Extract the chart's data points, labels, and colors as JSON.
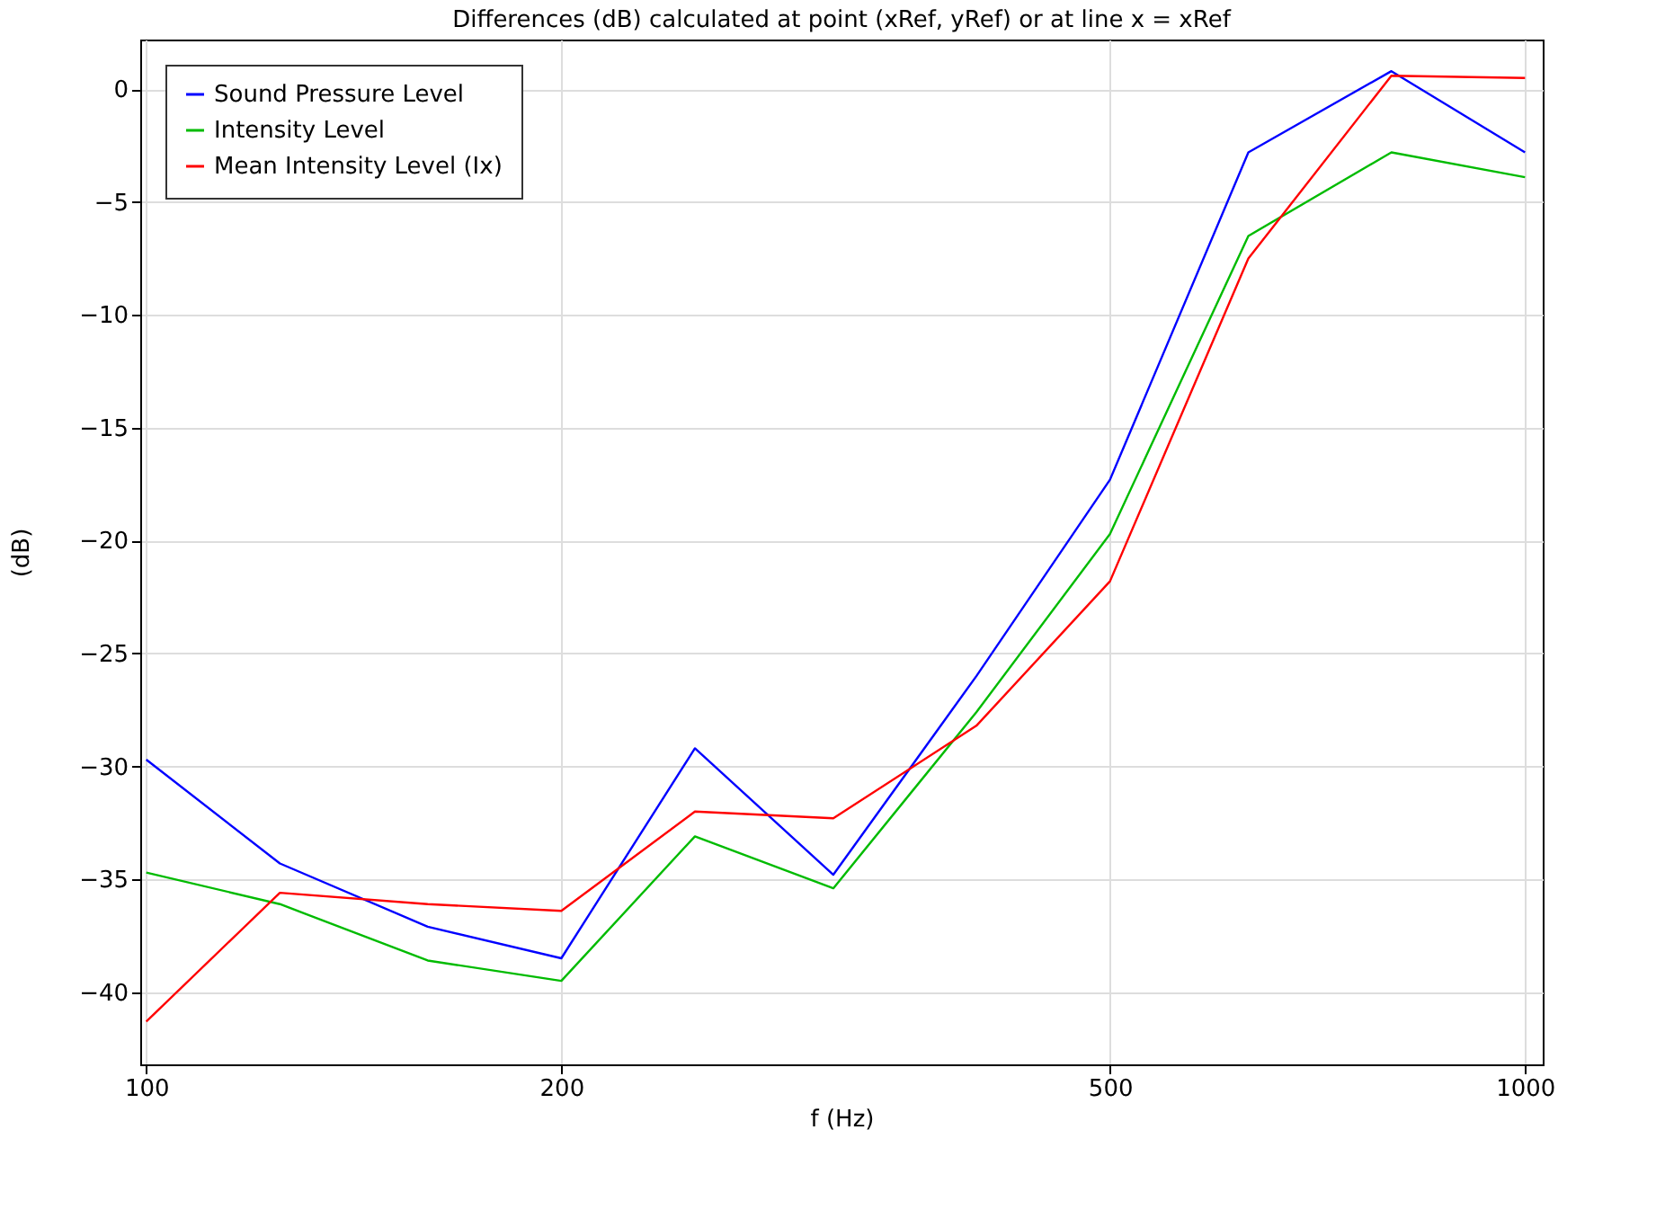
{
  "chart_data": {
    "type": "line",
    "title": "Differences (dB) calculated at point (xRef, yRef) or at line x = xRef",
    "xlabel": "f (Hz)",
    "ylabel": "(dB)",
    "x": [
      100,
      125,
      160,
      200,
      250,
      315,
      400,
      500,
      630,
      800,
      1000
    ],
    "series": [
      {
        "name": "Sound Pressure Level",
        "color": "#0000ff",
        "values": [
          -29.7,
          -34.3,
          -37.1,
          -38.5,
          -29.2,
          -34.8,
          -26,
          -17.3,
          -2.8,
          0.8,
          -2.8
        ]
      },
      {
        "name": "Intensity Level",
        "color": "#00bb00",
        "values": [
          -34.7,
          -36.1,
          -38.6,
          -39.5,
          -33.1,
          -35.4,
          -27.6,
          -19.7,
          -6.5,
          -2.8,
          -3.9
        ]
      },
      {
        "name": "Mean Intensity Level (Ix)",
        "color": "#ff0000",
        "values": [
          -41.3,
          -35.6,
          -36.1,
          -36.4,
          -32,
          -32.3,
          -28.2,
          -21.8,
          -7.5,
          0.6,
          0.5
        ]
      }
    ],
    "xlim": [
      99,
      1030
    ],
    "ylim": [
      -43.2,
      2.2
    ],
    "xticks": [
      100,
      200,
      500,
      1000
    ],
    "yticks": [
      -40,
      -35,
      -30,
      -25,
      -20,
      -15,
      -10,
      -5,
      0
    ],
    "log": "x",
    "grid": true,
    "legend": "top left",
    "marker": "none",
    "line_style": "solid"
  }
}
